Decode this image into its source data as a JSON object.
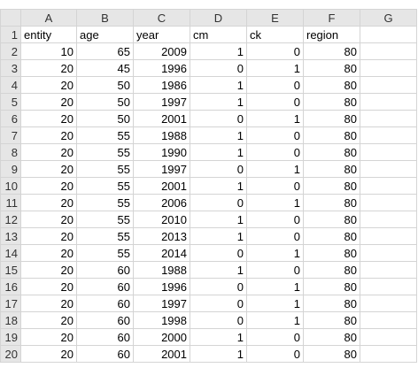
{
  "columns": [
    "A",
    "B",
    "C",
    "D",
    "E",
    "F",
    "G"
  ],
  "headers": [
    "entity",
    "age",
    "year",
    "cm",
    "ck",
    "region"
  ],
  "row_numbers": [
    "1",
    "2",
    "3",
    "4",
    "5",
    "6",
    "7",
    "8",
    "9",
    "10",
    "11",
    "12",
    "13",
    "14",
    "15",
    "16",
    "17",
    "18",
    "19",
    "20"
  ],
  "rows": [
    [
      "10",
      "65",
      "2009",
      "1",
      "0",
      "80"
    ],
    [
      "20",
      "45",
      "1996",
      "0",
      "1",
      "80"
    ],
    [
      "20",
      "50",
      "1986",
      "1",
      "0",
      "80"
    ],
    [
      "20",
      "50",
      "1997",
      "1",
      "0",
      "80"
    ],
    [
      "20",
      "50",
      "2001",
      "0",
      "1",
      "80"
    ],
    [
      "20",
      "55",
      "1988",
      "1",
      "0",
      "80"
    ],
    [
      "20",
      "55",
      "1990",
      "1",
      "0",
      "80"
    ],
    [
      "20",
      "55",
      "1997",
      "0",
      "1",
      "80"
    ],
    [
      "20",
      "55",
      "2001",
      "1",
      "0",
      "80"
    ],
    [
      "20",
      "55",
      "2006",
      "0",
      "1",
      "80"
    ],
    [
      "20",
      "55",
      "2010",
      "1",
      "0",
      "80"
    ],
    [
      "20",
      "55",
      "2013",
      "1",
      "0",
      "80"
    ],
    [
      "20",
      "55",
      "2014",
      "0",
      "1",
      "80"
    ],
    [
      "20",
      "60",
      "1988",
      "1",
      "0",
      "80"
    ],
    [
      "20",
      "60",
      "1996",
      "0",
      "1",
      "80"
    ],
    [
      "20",
      "60",
      "1997",
      "0",
      "1",
      "80"
    ],
    [
      "20",
      "60",
      "1998",
      "0",
      "1",
      "80"
    ],
    [
      "20",
      "60",
      "2000",
      "1",
      "0",
      "80"
    ],
    [
      "20",
      "60",
      "2001",
      "1",
      "0",
      "80"
    ]
  ]
}
